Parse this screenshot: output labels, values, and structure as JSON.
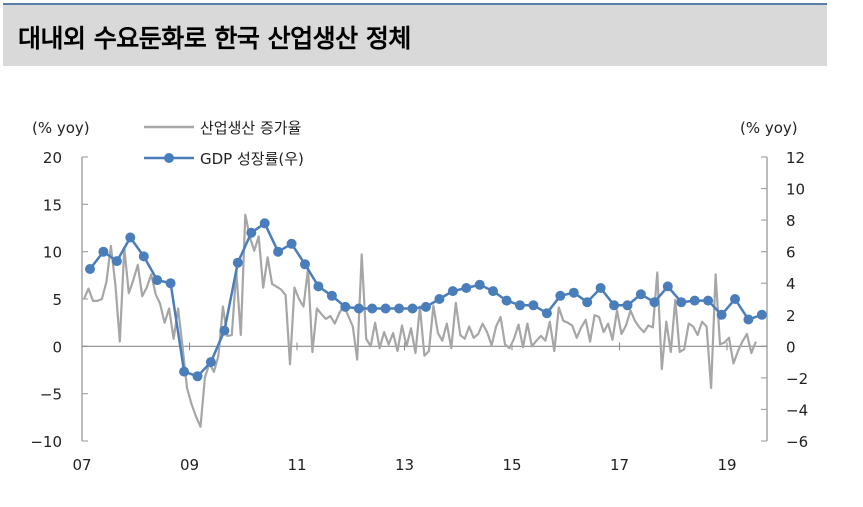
{
  "header": {
    "title": "대내외 수요둔화로 한국 산업생산 정체"
  },
  "chart_data": {
    "type": "line",
    "title": "대내외 수요둔화로 한국 산업생산 정체",
    "left_axis": {
      "label": "(% yoy)",
      "ticks": [
        20,
        15,
        10,
        5,
        0,
        -5,
        -10
      ],
      "tick_labels": [
        "20",
        "15",
        "10",
        "5",
        "0",
        "−5",
        "−10"
      ],
      "range": [
        -10,
        20
      ]
    },
    "right_axis": {
      "label": "(% yoy)",
      "ticks": [
        12,
        10,
        8,
        6,
        4,
        2,
        0,
        -2,
        -4,
        -6
      ],
      "tick_labels": [
        "12",
        "10",
        "8",
        "6",
        "4",
        "2",
        "0",
        "−2",
        "−4",
        "−6"
      ],
      "range": [
        -6,
        12
      ]
    },
    "x_axis": {
      "tick_labels": [
        "07",
        "09",
        "11",
        "13",
        "15",
        "17",
        "19"
      ],
      "range": [
        "2007-01",
        "2019-08"
      ]
    },
    "legend": [
      {
        "name": "산업생산 증가율",
        "color": "#a6a6a6",
        "marker": "none",
        "axis": "left"
      },
      {
        "name": "GDP 성장률(우)",
        "color": "#4a7ebb",
        "marker": "circle",
        "axis": "right"
      }
    ],
    "legend_position": "top-left",
    "grid": false,
    "series": [
      {
        "name": "GDP 성장률(우)",
        "axis": "right",
        "frequency": "quarterly",
        "start": "2007Q1",
        "values": [
          4.9,
          6.0,
          5.4,
          6.9,
          5.7,
          4.2,
          4.0,
          -1.6,
          -1.9,
          -1.0,
          1.0,
          5.3,
          7.2,
          7.8,
          6.0,
          6.5,
          5.2,
          3.8,
          3.2,
          2.5,
          2.4,
          2.4,
          2.4,
          2.4,
          2.4,
          2.5,
          3.0,
          3.5,
          3.7,
          3.9,
          3.5,
          2.9,
          2.6,
          2.6,
          2.1,
          3.2,
          3.4,
          2.8,
          3.7,
          2.6,
          2.6,
          3.3,
          2.8,
          3.8,
          2.8,
          2.9,
          2.9,
          2.0,
          3.0,
          1.7,
          2.0
        ]
      },
      {
        "name": "산업생산 증가율",
        "axis": "left",
        "frequency": "monthly",
        "start": "2007-01",
        "values": [
          5.0,
          6.1,
          4.8,
          4.8,
          5.0,
          6.8,
          10.6,
          6.5,
          0.5,
          10.4,
          5.6,
          7.0,
          8.6,
          5.3,
          6.2,
          7.6,
          5.5,
          4.5,
          2.5,
          4.0,
          0.8,
          4.0,
          0.0,
          -4.4,
          -6.1,
          -7.4,
          -8.5,
          -3.3,
          -1.8,
          -2.7,
          -1.0,
          4.2,
          1.1,
          1.2,
          7.9,
          1.2,
          13.9,
          11.6,
          10.1,
          11.6,
          6.2,
          9.4,
          6.6,
          6.3,
          6.0,
          5.4,
          -1.9,
          6.2,
          5.0,
          4.2,
          8.2,
          -0.6,
          4.0,
          3.4,
          2.9,
          3.2,
          2.4,
          3.5,
          4.3,
          3.2,
          2.1,
          -1.4,
          9.7,
          0.8,
          0.0,
          2.5,
          -0.2,
          1.5,
          0.2,
          1.4,
          -0.5,
          2.2,
          0.0,
          1.9,
          -0.7,
          4.2,
          -1.0,
          -0.5,
          4.3,
          1.4,
          0.6,
          2.4,
          -0.2,
          4.6,
          1.2,
          0.8,
          2.1,
          0.9,
          1.3,
          2.4,
          1.5,
          0.1,
          2.1,
          3.1,
          0.2,
          -0.2,
          0.8,
          2.3,
          -0.1,
          2.4,
          0.0,
          0.6,
          1.1,
          0.6,
          2.6,
          -0.5,
          4.1,
          2.7,
          2.5,
          2.2,
          0.9,
          2.0,
          2.8,
          0.5,
          3.3,
          3.1,
          1.5,
          2.4,
          0.7,
          3.8,
          1.3,
          2.2,
          3.8,
          2.7,
          2.0,
          1.5,
          2.2,
          2.0,
          7.8,
          -2.4,
          2.6,
          -0.6,
          4.9,
          -0.6,
          -0.3,
          2.4,
          2.1,
          1.2,
          2.6,
          2.1,
          -4.4,
          7.6,
          0.2,
          0.4,
          0.9,
          -1.8,
          -0.5,
          0.5,
          1.3,
          -0.7,
          0.5
        ]
      }
    ],
    "xlabel": "",
    "ylabel_left": "(% yoy)",
    "ylabel_right": "(% yoy)"
  }
}
